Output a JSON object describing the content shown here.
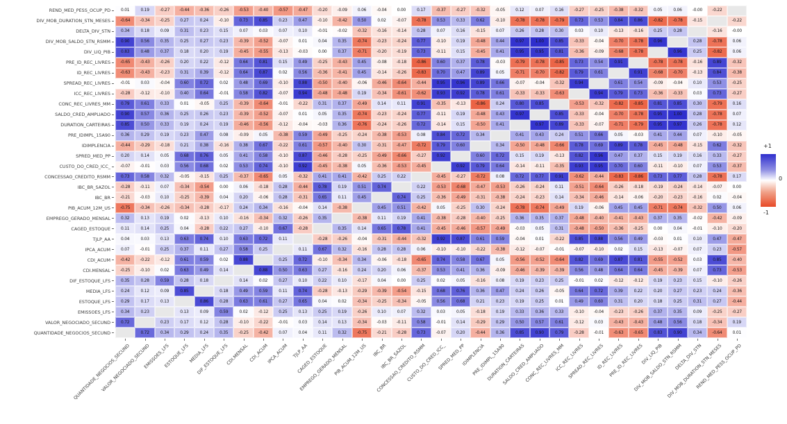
{
  "chart_data": {
    "type": "heatmap",
    "title": "",
    "grid": false,
    "legend_position": "right",
    "value_range": [
      -1,
      1
    ],
    "diagonal_color": "#e8e8e8",
    "positive_color": "#2e2ecd",
    "negative_color": "#e84a27",
    "background": "#ffffff",
    "colorbar": {
      "max_label": "+1",
      "mid_label": "0",
      "min_label": "-1"
    },
    "row_labels": [
      "REND_MED_PESS_OCUP_PD",
      "DIV_MOB_DURATION_STN_MESES",
      "DELTA_DIV_STN",
      "DIV_MOB_SALDO_STN_RSMM",
      "DIV_LIQ_PIB",
      "PRE_ID_REC_LIVRES",
      "ID_REC_LIVRES",
      "SPREAD_REC_LIVRES",
      "ICC_REC_LIVRES",
      "CONC_REC_LIVRES_MM",
      "SALDO_CRED_AMPLIADO",
      "DURATION_CARTEIRAS",
      "PRE_IDIMPL_15A90",
      "IDIMPLENCIA",
      "SPRED_MED_PP",
      "CUSTO_DO_CRED_ICC_",
      "CONCESSAO_CREDITO_RSMM",
      "IBC_BR_SAZOL",
      "IBC_BR",
      "PIB_ACUM_12M_US",
      "EMPREGO_GERADO_MENSAL",
      "CAGED_ESTOQUE",
      "TJLP_AA",
      "IPCA_ACUM",
      "CDI_ACUM",
      "CDI.MENSAL",
      "DIF_ESTOQUE_LFS",
      "MEDIA_LFS",
      "ESTOQUE_LFS",
      "EMISSOES_LFS",
      "VALOR_NEGOCIADO_SECUND",
      "QUANTIDADE_NEGOCIOS_SECUND"
    ],
    "col_labels": [
      "QUANTIDADE_NEGOCIOS_SECUND",
      "VALOR_NEGOCIADO_SECUND",
      "EMISSOES_LFS",
      "ESTOQUE_LFS",
      "MEDIA_LFS",
      "DIF_ESTOQUE_LFS",
      "CDI.MENSAL",
      "CDI_ACUM",
      "IPCA_ACUM",
      "TJLP_AA",
      "CAGED_ESTOQUE",
      "EMPREGO_GERADO_MENSAL",
      "PIB_ACUM_12M_US",
      "IBC_BR",
      "IBC_BR_SAZOL",
      "CONCESSAO_CREDITO_RSMM",
      "CUSTO_DO_CRED_ICC_",
      "SPRED_MED_PP",
      "IDIMPLENCIA",
      "PRE_IDIMPL_15A90",
      "DURATION_CARTEIRAS",
      "SALDO_CRED_AMPLIADO",
      "CONC_REC_LIVRES_MM",
      "ICC_REC_LIVRES",
      "SPREAD_REC_LIVRES",
      "ID_REC_LIVRES",
      "PRE_ID_REC_LIVRES",
      "DIV_LIQ_PIB",
      "DIV_MOB_SALDO_STN_RSMM",
      "DELTA_DIV_STN",
      "DIV_MOB_DURATION_STN_MESES",
      "REND_MED_PESS_OCUP_PD"
    ],
    "matrix": [
      [
        "0.01",
        "0.19",
        "-0.27",
        "-0.44",
        "-0.36",
        "-0.26",
        "-0.53",
        "-0.40",
        "-0.57",
        "-0.47",
        "-0.20",
        "-0.09",
        "0.06",
        "-0.04",
        "0.00",
        "0.17",
        "-0.37",
        "-0.27",
        "-0.32",
        "-0.05",
        "0.12",
        "0.07",
        "0.16",
        "-0.27",
        "-0.25",
        "-0.38",
        "-0.32",
        "0.05",
        "0.06",
        "-0.00",
        "-0.22",
        null
      ],
      [
        "-0.64",
        "-0.34",
        "-0.25",
        "0.27",
        "0.24",
        "-0.10",
        "0.73",
        "0.85",
        "0.23",
        "0.47",
        "-0.10",
        "-0.42",
        "0.50",
        "0.02",
        "-0.07",
        "-0.78",
        "0.53",
        "0.33",
        "0.62",
        "-0.10",
        "-0.78",
        "-0.78",
        "-0.79",
        "0.73",
        "0.53",
        "0.84",
        "0.86",
        "-0.82",
        "-0.78",
        "-0.15",
        null,
        "-0.22"
      ],
      [
        "0.34",
        "0.18",
        "0.09",
        "0.31",
        "0.23",
        "0.15",
        "0.07",
        "0.03",
        "0.07",
        "0.10",
        "-0.01",
        "-0.02",
        "-0.32",
        "-0.16",
        "-0.14",
        "0.28",
        "0.07",
        "0.16",
        "-0.15",
        "0.07",
        "0.26",
        "0.28",
        "0.30",
        "0.03",
        "0.10",
        "-0.13",
        "-0.16",
        "0.25",
        "0.28",
        null,
        "-0.16",
        "-0.00"
      ],
      [
        "0.90",
        "0.56",
        "0.35",
        "0.25",
        "0.27",
        "0.23",
        "-0.39",
        "-0.52",
        "-0.07",
        "0.01",
        "0.04",
        "0.35",
        "-0.74",
        "-0.23",
        "-0.24",
        "0.77",
        "-0.10",
        "0.19",
        "-0.48",
        "0.44",
        "0.97",
        "1.00",
        "0.85",
        "-0.33",
        "-0.04",
        "-0.70",
        "-0.78",
        "0.96",
        null,
        "0.28",
        "-0.78",
        "0.06"
      ],
      [
        "0.83",
        "0.48",
        "0.37",
        "0.18",
        "0.20",
        "0.19",
        "-0.45",
        "-0.55",
        "-0.13",
        "-0.03",
        "0.00",
        "0.37",
        "-0.71",
        "-0.20",
        "-0.19",
        "0.73",
        "-0.11",
        "0.15",
        "-0.45",
        "0.41",
        "0.95",
        "0.95",
        "0.81",
        "-0.36",
        "-0.09",
        "-0.68",
        "-0.78",
        null,
        "0.96",
        "0.25",
        "-0.82",
        "0.06"
      ],
      [
        "-0.65",
        "-0.43",
        "-0.26",
        "0.20",
        "0.22",
        "-0.12",
        "0.64",
        "0.81",
        "0.15",
        "0.49",
        "-0.25",
        "-0.43",
        "0.45",
        "-0.08",
        "-0.18",
        "-0.86",
        "0.60",
        "0.37",
        "0.78",
        "-0.03",
        "-0.79",
        "-0.78",
        "-0.85",
        "0.73",
        "0.54",
        "0.91",
        null,
        "-0.78",
        "-0.78",
        "-0.16",
        "0.89",
        "-0.32"
      ],
      [
        "-0.63",
        "-0.43",
        "-0.23",
        "0.31",
        "0.39",
        "-0.12",
        "0.64",
        "0.87",
        "0.02",
        "0.56",
        "-0.36",
        "-0.41",
        "0.45",
        "-0.14",
        "-0.26",
        "-0.83",
        "0.70",
        "0.47",
        "0.89",
        "0.05",
        "-0.71",
        "-0.70",
        "-0.82",
        "0.79",
        "0.61",
        null,
        "0.91",
        "-0.68",
        "-0.70",
        "-0.13",
        "0.84",
        "-0.38"
      ],
      [
        "-0.01",
        "0.03",
        "-0.04",
        "0.60",
        "0.72",
        "0.02",
        "0.48",
        "0.69",
        "-0.10",
        "0.88",
        "-0.50",
        "-0.40",
        "-0.06",
        "-0.46",
        "-0.64",
        "-0.44",
        "0.95",
        "0.96",
        "0.89",
        "0.66",
        "-0.07",
        "-0.04",
        "-0.32",
        "0.94",
        null,
        "0.61",
        "0.54",
        "-0.09",
        "-0.04",
        "0.10",
        "0.53",
        "-0.25"
      ],
      [
        "-0.28",
        "-0.12",
        "-0.10",
        "0.40",
        "0.64",
        "-0.01",
        "0.58",
        "0.82",
        "-0.07",
        "0.94",
        "-0.48",
        "-0.48",
        "0.19",
        "-0.34",
        "-0.61",
        "-0.62",
        "0.93",
        "0.92",
        "0.78",
        "0.61",
        "-0.33",
        "-0.33",
        "-0.63",
        null,
        "0.94",
        "0.79",
        "0.73",
        "-0.36",
        "-0.33",
        "0.03",
        "0.73",
        "-0.27"
      ],
      [
        "0.79",
        "0.61",
        "0.33",
        "0.01",
        "-0.05",
        "0.25",
        "-0.39",
        "-0.64",
        "-0.01",
        "-0.22",
        "0.31",
        "0.37",
        "-0.49",
        "0.14",
        "0.11",
        "0.91",
        "-0.35",
        "-0.13",
        "-0.86",
        "0.24",
        "0.80",
        "0.85",
        null,
        "-0.53",
        "-0.32",
        "-0.82",
        "-0.85",
        "0.81",
        "0.85",
        "0.30",
        "-0.79",
        "0.16"
      ],
      [
        "0.90",
        "0.57",
        "0.36",
        "0.25",
        "0.26",
        "0.23",
        "-0.39",
        "-0.52",
        "-0.07",
        "0.01",
        "0.05",
        "0.35",
        "-0.74",
        "-0.23",
        "-0.24",
        "0.77",
        "-0.11",
        "0.19",
        "-0.48",
        "0.43",
        "0.97",
        null,
        "0.85",
        "-0.33",
        "-0.04",
        "-0.70",
        "-0.78",
        "0.95",
        "1.00",
        "0.28",
        "-0.78",
        "0.07"
      ],
      [
        "0.85",
        "0.50",
        "0.33",
        "0.19",
        "0.24",
        "0.19",
        "-0.46",
        "-0.56",
        "-0.12",
        "-0.04",
        "-0.03",
        "0.36",
        "-0.76",
        "-0.24",
        "-0.26",
        "0.72",
        "-0.14",
        "0.15",
        "-0.50",
        "0.41",
        null,
        "0.97",
        "0.89",
        "-0.33",
        "-0.07",
        "-0.71",
        "-0.79",
        "0.95",
        "0.97",
        "0.26",
        "-0.78",
        "0.12"
      ],
      [
        "0.36",
        "0.29",
        "0.19",
        "0.23",
        "0.47",
        "0.08",
        "-0.09",
        "0.05",
        "-0.38",
        "0.59",
        "-0.49",
        "-0.25",
        "-0.24",
        "-0.38",
        "-0.53",
        "0.08",
        "0.84",
        "0.72",
        "0.34",
        null,
        "0.41",
        "0.43",
        "0.24",
        "0.51",
        "0.66",
        "0.05",
        "-0.03",
        "0.41",
        "0.44",
        "0.07",
        "-0.10",
        "-0.05"
      ],
      [
        "-0.44",
        "-0.29",
        "-0.18",
        "0.21",
        "0.38",
        "-0.16",
        "0.38",
        "0.67",
        "-0.22",
        "0.61",
        "-0.57",
        "-0.40",
        "0.30",
        "-0.31",
        "-0.47",
        "-0.72",
        "0.79",
        "0.60",
        null,
        "0.34",
        "-0.50",
        "-0.48",
        "-0.66",
        "0.78",
        "0.69",
        "0.89",
        "0.78",
        "-0.45",
        "-0.48",
        "-0.15",
        "0.62",
        "-0.32"
      ],
      [
        "0.20",
        "0.14",
        "0.05",
        "0.68",
        "0.76",
        "0.05",
        "0.41",
        "0.58",
        "-0.10",
        "0.87",
        "-0.46",
        "-0.28",
        "-0.25",
        "-0.49",
        "-0.66",
        "-0.27",
        "0.92",
        null,
        "0.60",
        "0.72",
        "0.15",
        "0.19",
        "-0.13",
        "0.82",
        "0.96",
        "0.47",
        "0.37",
        "0.15",
        "0.19",
        "0.16",
        "0.33",
        "-0.27"
      ],
      [
        "-0.07",
        "-0.01",
        "0.03",
        "0.56",
        "0.68",
        "0.02",
        "0.53",
        "0.74",
        "-0.10",
        "0.92",
        "-0.45",
        "-0.38",
        "0.05",
        "-0.36",
        "-0.53",
        "-0.45",
        null,
        "0.92",
        "0.79",
        "0.64",
        "-0.14",
        "-0.11",
        "-0.35",
        "0.93",
        "0.95",
        "0.70",
        "0.60",
        "-0.11",
        "-0.10",
        "0.07",
        "0.53",
        "-0.37"
      ],
      [
        "0.73",
        "0.58",
        "0.32",
        "-0.05",
        "-0.15",
        "0.25",
        "-0.37",
        "-0.65",
        "0.05",
        "-0.32",
        "0.41",
        "0.41",
        "-0.42",
        "0.25",
        "0.22",
        null,
        "-0.45",
        "-0.27",
        "-0.72",
        "0.08",
        "0.72",
        "0.77",
        "0.91",
        "-0.62",
        "-0.44",
        "-0.83",
        "-0.86",
        "0.73",
        "0.77",
        "0.28",
        "-0.78",
        "0.17"
      ],
      [
        "-0.28",
        "-0.11",
        "0.07",
        "-0.34",
        "-0.54",
        "0.00",
        "0.06",
        "-0.18",
        "0.28",
        "-0.44",
        "0.78",
        "0.19",
        "0.51",
        "0.74",
        null,
        "0.22",
        "-0.53",
        "-0.68",
        "-0.47",
        "-0.53",
        "-0.26",
        "-0.24",
        "0.11",
        "-0.51",
        "-0.64",
        "-0.26",
        "-0.18",
        "-0.19",
        "-0.24",
        "-0.14",
        "-0.07",
        "0.00"
      ],
      [
        "-0.21",
        "-0.03",
        "0.10",
        "-0.25",
        "-0.39",
        "0.04",
        "0.20",
        "-0.06",
        "0.28",
        "-0.31",
        "0.65",
        "0.11",
        "0.45",
        null,
        "0.74",
        "0.25",
        "-0.36",
        "-0.49",
        "-0.31",
        "-0.38",
        "-0.24",
        "-0.23",
        "0.14",
        "-0.34",
        "-0.46",
        "-0.14",
        "-0.06",
        "-0.20",
        "-0.23",
        "-0.16",
        "0.02",
        "-0.04"
      ],
      [
        "-0.75",
        "-0.34",
        "-0.26",
        "-0.34",
        "-0.28",
        "-0.17",
        "0.24",
        "0.34",
        "-0.16",
        "-0.04",
        "0.14",
        "-0.38",
        null,
        "0.45",
        "0.51",
        "-0.42",
        "0.05",
        "-0.25",
        "0.30",
        "-0.24",
        "-0.78",
        "-0.74",
        "-0.49",
        "0.19",
        "-0.06",
        "0.45",
        "0.45",
        "-0.71",
        "-0.74",
        "-0.32",
        "0.50",
        "0.06"
      ],
      [
        "0.32",
        "0.13",
        "0.19",
        "0.02",
        "-0.13",
        "0.10",
        "-0.16",
        "-0.34",
        "0.32",
        "-0.26",
        "0.35",
        null,
        "-0.38",
        "0.11",
        "0.19",
        "0.41",
        "-0.38",
        "-0.28",
        "-0.40",
        "-0.25",
        "0.36",
        "0.35",
        "0.37",
        "-0.48",
        "-0.40",
        "-0.41",
        "-0.43",
        "0.37",
        "0.35",
        "-0.02",
        "-0.42",
        "-0.09"
      ],
      [
        "0.11",
        "0.14",
        "0.25",
        "0.04",
        "-0.28",
        "0.22",
        "0.27",
        "-0.10",
        "0.67",
        "-0.28",
        null,
        "0.35",
        "0.14",
        "0.65",
        "0.78",
        "0.41",
        "-0.45",
        "-0.46",
        "-0.57",
        "-0.49",
        "-0.03",
        "0.05",
        "0.31",
        "-0.48",
        "-0.50",
        "-0.36",
        "-0.25",
        "0.00",
        "0.04",
        "-0.01",
        "-0.10",
        "-0.20"
      ],
      [
        "0.04",
        "0.03",
        "0.13",
        "0.63",
        "0.74",
        "0.10",
        "0.63",
        "0.72",
        "0.11",
        null,
        "-0.28",
        "-0.26",
        "-0.04",
        "-0.31",
        "-0.44",
        "-0.32",
        "0.92",
        "0.87",
        "0.61",
        "0.59",
        "-0.04",
        "0.01",
        "-0.22",
        "0.85",
        "0.88",
        "0.56",
        "0.49",
        "-0.03",
        "0.01",
        "0.10",
        "0.47",
        "-0.47"
      ],
      [
        "0.07",
        "-0.01",
        "0.25",
        "0.37",
        "0.11",
        "0.27",
        "0.58",
        "0.25",
        null,
        "0.11",
        "0.67",
        "0.32",
        "-0.16",
        "0.28",
        "0.28",
        "0.06",
        "-0.10",
        "-0.10",
        "-0.22",
        "-0.38",
        "-0.12",
        "-0.07",
        "-0.01",
        "-0.07",
        "-0.10",
        "0.02",
        "0.15",
        "-0.13",
        "-0.07",
        "0.07",
        "0.23",
        "-0.57"
      ],
      [
        "-0.42",
        "-0.22",
        "-0.12",
        "0.61",
        "0.59",
        "0.02",
        "0.88",
        null,
        "0.25",
        "0.72",
        "-0.10",
        "-0.34",
        "0.34",
        "-0.06",
        "-0.18",
        "-0.65",
        "0.74",
        "0.58",
        "0.67",
        "0.05",
        "-0.56",
        "-0.52",
        "-0.64",
        "0.82",
        "0.69",
        "0.87",
        "0.81",
        "-0.55",
        "-0.52",
        "0.03",
        "0.85",
        "-0.40"
      ],
      [
        "-0.25",
        "-0.10",
        "0.02",
        "0.63",
        "0.49",
        "0.14",
        null,
        "0.88",
        "0.50",
        "0.63",
        "0.27",
        "-0.16",
        "0.24",
        "0.20",
        "0.06",
        "-0.37",
        "0.53",
        "0.41",
        "0.36",
        "-0.09",
        "-0.46",
        "-0.39",
        "-0.39",
        "0.56",
        "0.48",
        "0.64",
        "0.64",
        "-0.45",
        "-0.39",
        "0.07",
        "0.73",
        "-0.53"
      ],
      [
        "0.35",
        "0.28",
        "0.59",
        "0.28",
        "0.18",
        null,
        "0.14",
        "0.02",
        "0.27",
        "0.10",
        "0.22",
        "0.10",
        "-0.17",
        "0.04",
        "0.00",
        "0.25",
        "0.02",
        "0.05",
        "-0.16",
        "0.08",
        "0.19",
        "0.23",
        "0.25",
        "-0.01",
        "0.02",
        "-0.12",
        "-0.12",
        "0.19",
        "0.23",
        "0.15",
        "-0.10",
        "-0.26"
      ],
      [
        "0.24",
        "0.12",
        "0.09",
        "0.85",
        null,
        "0.18",
        "0.49",
        "0.59",
        "0.11",
        "0.74",
        "-0.28",
        "-0.13",
        "-0.29",
        "-0.39",
        "-0.54",
        "-0.15",
        "0.68",
        "0.76",
        "0.36",
        "0.47",
        "0.24",
        "0.26",
        "-0.05",
        "0.64",
        "0.72",
        "0.39",
        "0.22",
        "0.20",
        "0.27",
        "0.23",
        "0.24",
        "-0.36"
      ],
      [
        "0.29",
        "0.17",
        "0.13",
        null,
        "0.86",
        "0.28",
        "0.63",
        "0.61",
        "0.27",
        "0.65",
        "0.04",
        "0.02",
        "-0.34",
        "-0.25",
        "-0.34",
        "-0.05",
        "0.56",
        "0.68",
        "0.21",
        "0.23",
        "0.19",
        "0.25",
        "0.01",
        "0.49",
        "0.60",
        "0.31",
        "0.20",
        "0.18",
        "0.25",
        "0.31",
        "0.27",
        "-0.44"
      ],
      [
        "0.34",
        "0.23",
        null,
        "0.13",
        "0.09",
        "0.59",
        "0.02",
        "-0.12",
        "0.25",
        "0.13",
        "0.25",
        "0.19",
        "-0.26",
        "0.10",
        "0.07",
        "0.32",
        "0.03",
        "0.05",
        "-0.18",
        "0.19",
        "0.33",
        "0.36",
        "0.33",
        "-0.10",
        "-0.04",
        "-0.23",
        "-0.26",
        "0.37",
        "0.35",
        "0.09",
        "-0.25",
        "-0.27"
      ],
      [
        "0.72",
        null,
        "0.23",
        "0.17",
        "0.12",
        "0.28",
        "-0.10",
        "-0.22",
        "-0.01",
        "0.03",
        "0.14",
        "0.13",
        "-0.34",
        "-0.03",
        "-0.11",
        "0.58",
        "-0.01",
        "0.14",
        "-0.29",
        "0.29",
        "0.50",
        "0.57",
        "0.61",
        "-0.12",
        "0.03",
        "-0.43",
        "-0.43",
        "0.48",
        "0.56",
        "0.18",
        "-0.34",
        "0.19"
      ],
      [
        null,
        "0.72",
        "0.34",
        "0.29",
        "0.24",
        "0.35",
        "-0.25",
        "-0.42",
        "0.07",
        "0.04",
        "0.11",
        "0.32",
        "-0.75",
        "-0.21",
        "-0.28",
        "0.73",
        "-0.07",
        "0.20",
        "-0.44",
        "0.36",
        "0.85",
        "0.90",
        "0.79",
        "-0.28",
        "-0.01",
        "-0.63",
        "-0.65",
        "0.83",
        "0.90",
        "0.34",
        "-0.64",
        "0.01"
      ]
    ]
  }
}
